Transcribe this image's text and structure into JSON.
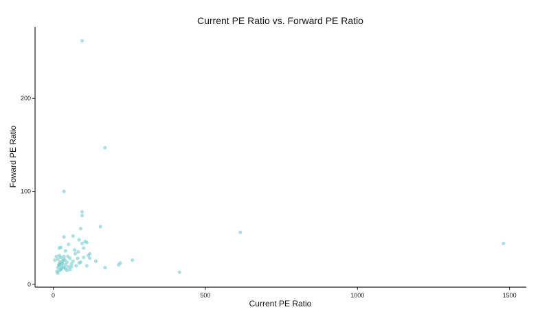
{
  "chart_data": {
    "type": "scatter",
    "title": "Current PE Ratio vs. Forward PE Ratio",
    "xlabel": "Current PE Ratio",
    "ylabel": "Foward PE Ratio",
    "xlim": [
      -60,
      1555
    ],
    "ylim": [
      -3,
      277
    ],
    "xticks": [
      0,
      500,
      1000,
      1500
    ],
    "yticks": [
      0,
      100,
      200
    ],
    "grid": false,
    "point_color": "#66c9c6",
    "points": [
      [
        95,
        262
      ],
      [
        170,
        147
      ],
      [
        35,
        100
      ],
      [
        95,
        78
      ],
      [
        95,
        74
      ],
      [
        155,
        62
      ],
      [
        90,
        60
      ],
      [
        615,
        56
      ],
      [
        35,
        51
      ],
      [
        65,
        52
      ],
      [
        85,
        48
      ],
      [
        105,
        46
      ],
      [
        95,
        44
      ],
      [
        110,
        45
      ],
      [
        50,
        43
      ],
      [
        1480,
        44
      ],
      [
        25,
        40
      ],
      [
        20,
        39
      ],
      [
        70,
        37
      ],
      [
        40,
        36
      ],
      [
        120,
        33
      ],
      [
        115,
        31
      ],
      [
        10,
        30
      ],
      [
        20,
        31
      ],
      [
        25,
        29
      ],
      [
        35,
        30
      ],
      [
        55,
        28
      ],
      [
        80,
        28
      ],
      [
        100,
        29
      ],
      [
        15,
        27
      ],
      [
        120,
        28
      ],
      [
        260,
        26
      ],
      [
        5,
        26
      ],
      [
        30,
        25
      ],
      [
        45,
        24
      ],
      [
        65,
        25
      ],
      [
        90,
        24
      ],
      [
        30,
        23
      ],
      [
        20,
        22
      ],
      [
        40,
        21
      ],
      [
        60,
        22
      ],
      [
        220,
        23
      ],
      [
        215,
        21
      ],
      [
        20,
        20
      ],
      [
        30,
        19
      ],
      [
        35,
        18
      ],
      [
        50,
        19
      ],
      [
        75,
        20
      ],
      [
        110,
        20
      ],
      [
        170,
        18
      ],
      [
        15,
        18
      ],
      [
        40,
        17
      ],
      [
        55,
        16
      ],
      [
        25,
        16
      ],
      [
        20,
        15
      ],
      [
        45,
        15
      ],
      [
        415,
        13
      ],
      [
        15,
        12
      ],
      [
        28,
        22
      ],
      [
        22,
        24
      ],
      [
        33,
        27
      ],
      [
        18,
        21
      ],
      [
        26,
        17
      ],
      [
        38,
        26
      ],
      [
        48,
        30
      ],
      [
        72,
        33
      ],
      [
        85,
        23
      ],
      [
        140,
        25
      ],
      [
        12,
        14
      ],
      [
        60,
        19
      ],
      [
        82,
        35
      ],
      [
        100,
        39
      ]
    ]
  }
}
